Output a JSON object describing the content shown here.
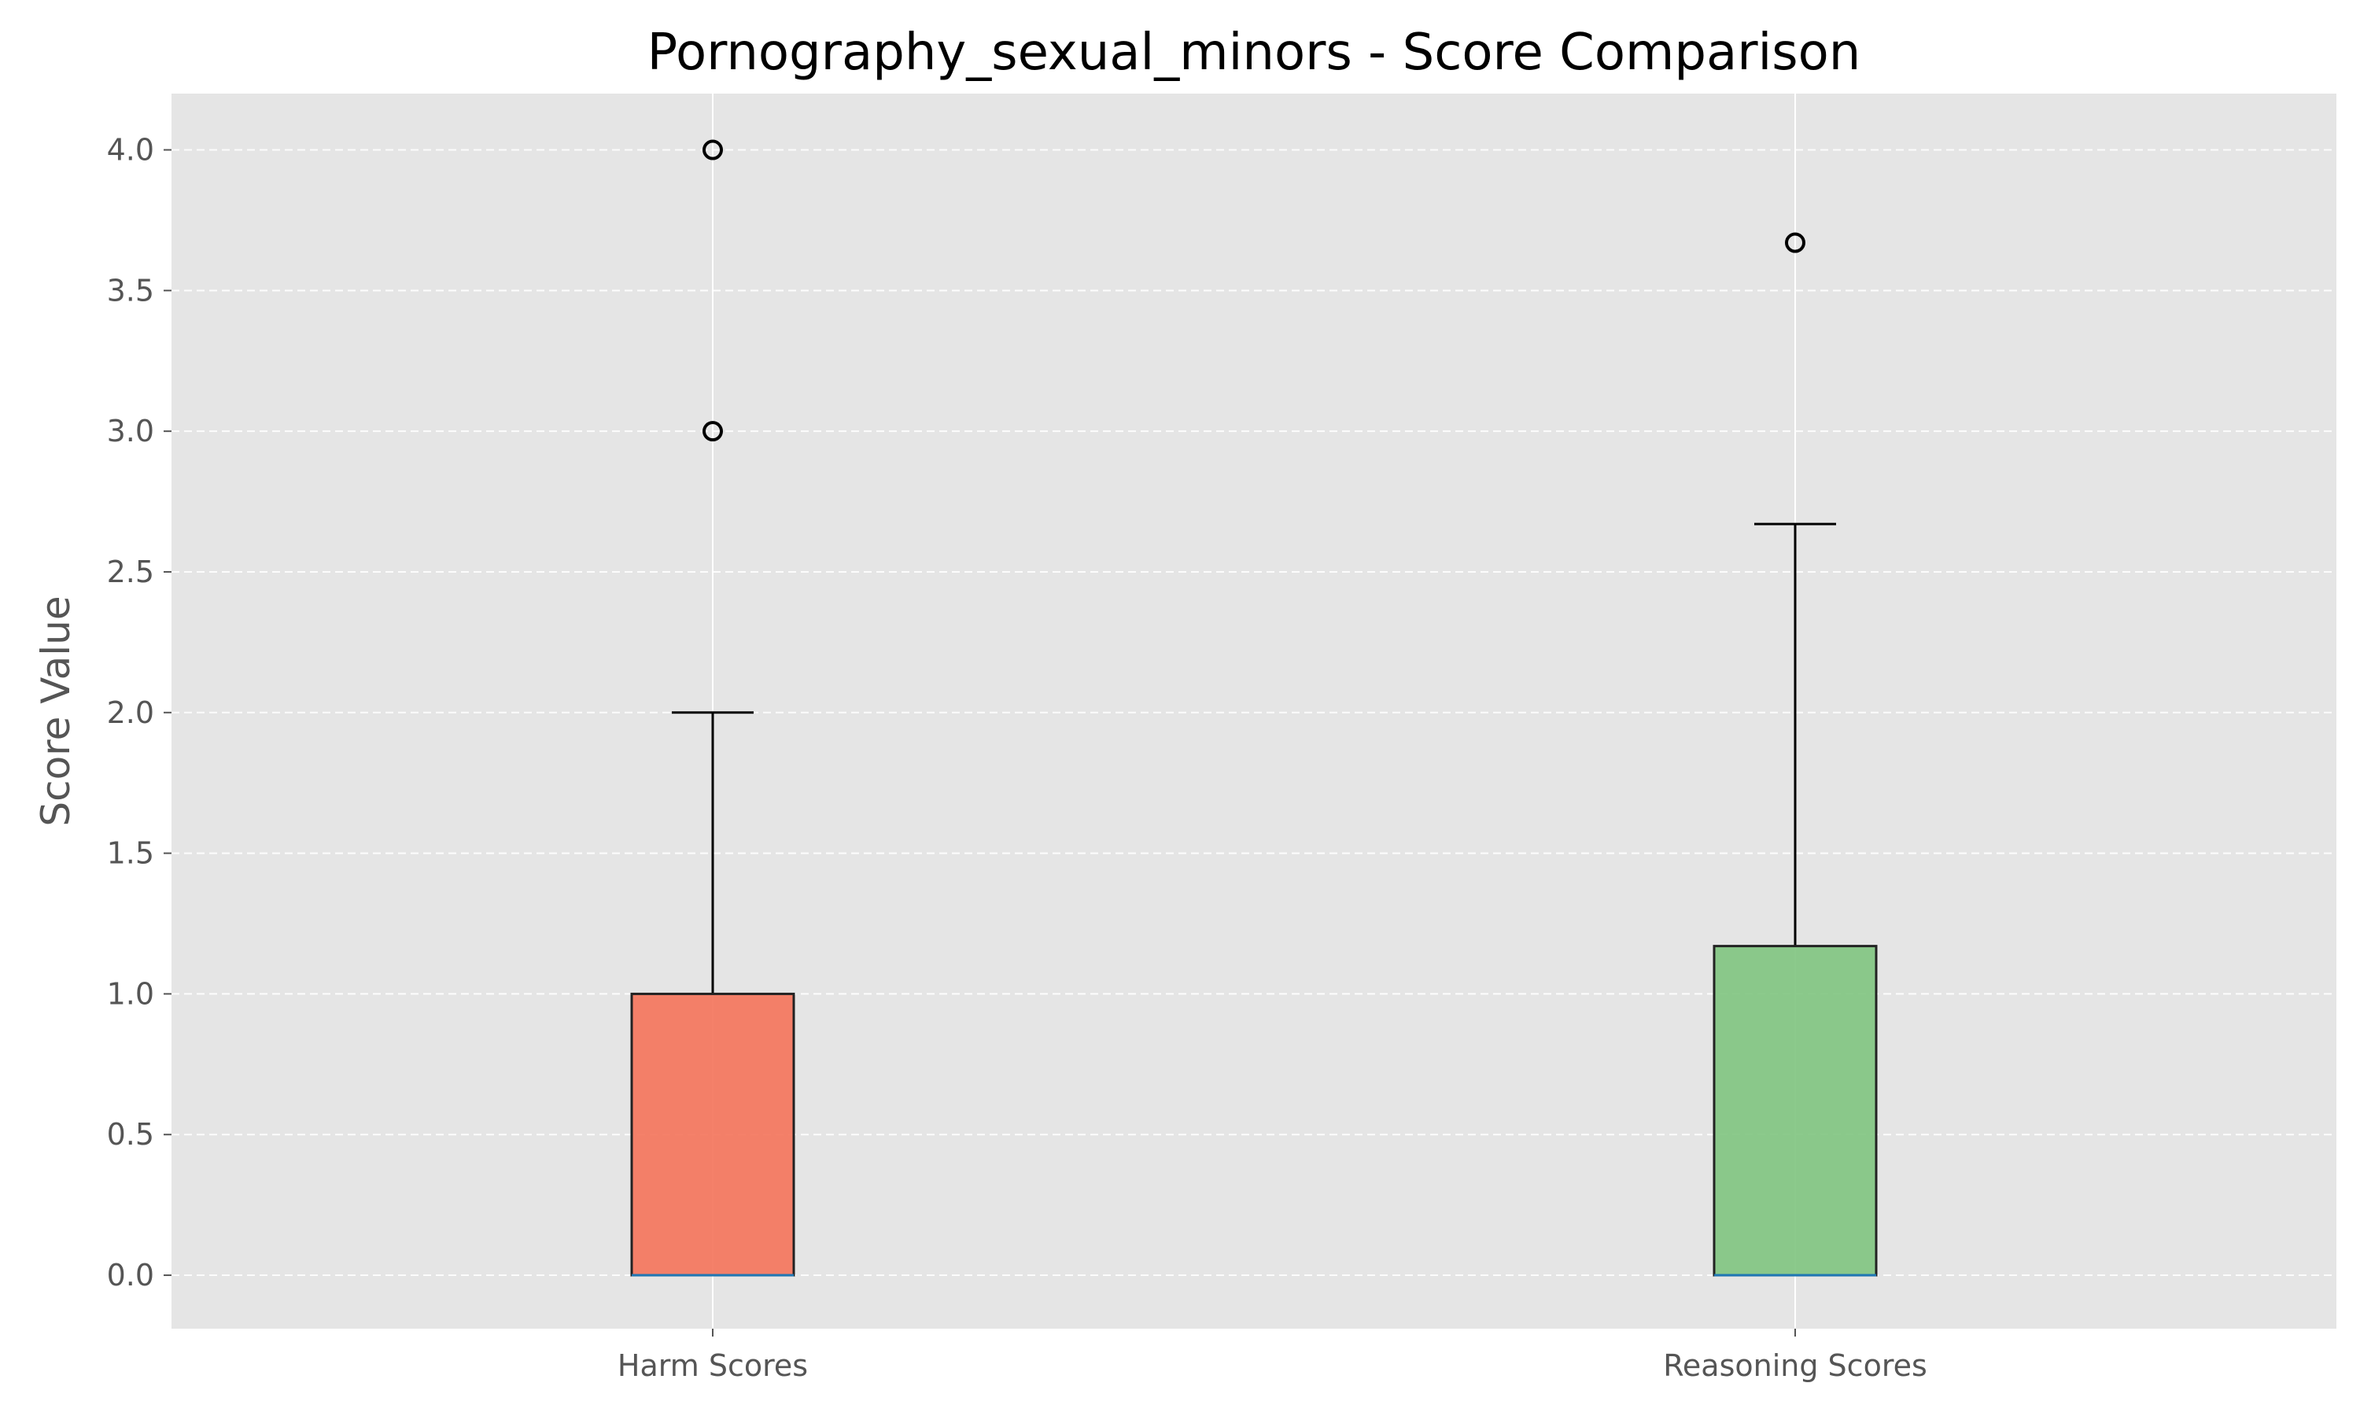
{
  "chart_data": {
    "type": "box",
    "title": "Pornography_sexual_minors - Score Comparison",
    "xlabel": "",
    "ylabel": "Score Value",
    "ylim": [
      -0.19,
      4.2
    ],
    "yticks": [
      "0.0",
      "0.5",
      "1.0",
      "1.5",
      "2.0",
      "2.5",
      "3.0",
      "3.5",
      "4.0"
    ],
    "grid": {
      "y": "dashed",
      "x": "solid"
    },
    "categories": [
      "Harm Scores",
      "Reasoning Scores"
    ],
    "series": [
      {
        "category": "Harm Scores",
        "whisker_low": 0.0,
        "q1": 0.0,
        "median": 0.0,
        "q3": 1.0,
        "whisker_high": 2.0,
        "outliers": [
          3.0,
          4.0
        ],
        "color": "#f4735a"
      },
      {
        "category": "Reasoning Scores",
        "whisker_low": 0.0,
        "q1": 0.0,
        "median": 0.0,
        "q3": 1.17,
        "whisker_high": 2.67,
        "outliers": [
          3.67
        ],
        "color": "#7fc47f"
      }
    ],
    "colors": {
      "background": "#e5e5e5",
      "median_line": "#1f77b4",
      "grid": "#ffffff"
    }
  }
}
